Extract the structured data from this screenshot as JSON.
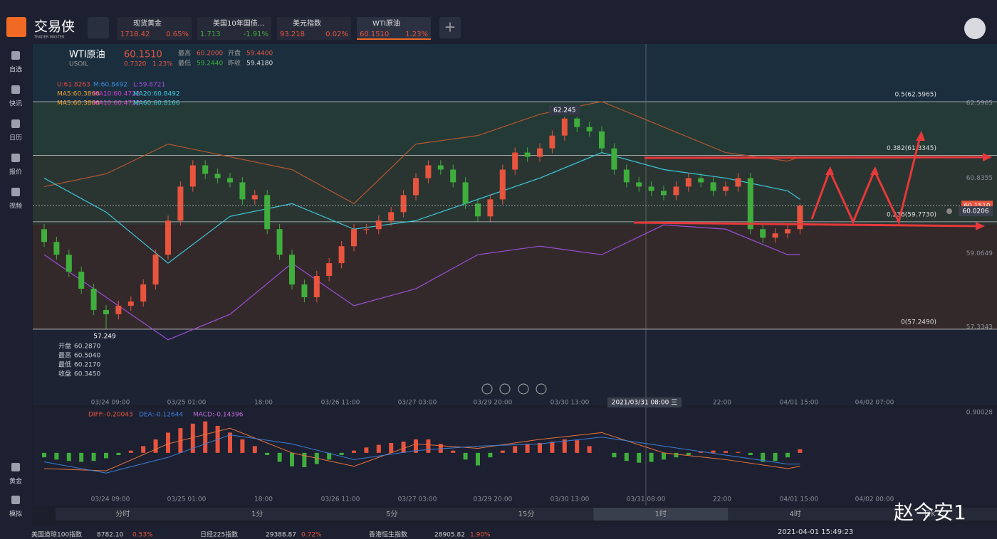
{
  "topbar": {
    "logo": "交易侠",
    "logo_sub": "TRADER MASTER",
    "tabs": [
      {
        "name": "现货黄金",
        "price": "1718.42",
        "change": "0.65%"
      },
      {
        "name": "美国10年国债...",
        "price": "1.713",
        "change": "-1.91%"
      },
      {
        "name": "美元指数",
        "price": "93.218",
        "change": "0.02%"
      },
      {
        "name": "WTI原油",
        "price": "60.1510",
        "change": "1.23%"
      }
    ]
  },
  "sidebar": [
    "自选",
    "快讯",
    "日历",
    "报价",
    "视频",
    "黄金",
    "模拟"
  ],
  "quote": {
    "name": "WTI原油",
    "symbol": "USOIL",
    "price": "60.1510",
    "change": "0.7320",
    "change_pct": "1.23%",
    "high_label": "最高",
    "high": "60.2000",
    "open_label": "开盘",
    "open": "59.4400",
    "low_label": "最低",
    "low": "59.2440",
    "prev_label": "昨收",
    "prev": "59.4180"
  },
  "indicators": {
    "boll": [
      "U:61.8263",
      "M:60.8492",
      "L:59.8721"
    ],
    "ma1": [
      "MA5:60.3860",
      "MA10:60.4722",
      "MA20:60.8492"
    ],
    "ma2": [
      "MA5:60.3860",
      "MA10:60.4722",
      "MA60:60.8166"
    ]
  },
  "chart": {
    "type": "candlestick",
    "ylim": [
      55.71,
      63.95
    ],
    "yticks": [
      62.5965,
      60.8355,
      59.0649,
      57.3343
    ],
    "candles": [
      [
        59.6,
        59.72,
        59.18,
        59.3
      ],
      [
        59.3,
        59.42,
        58.88,
        59.0
      ],
      [
        59.0,
        59.12,
        58.48,
        58.6
      ],
      [
        58.6,
        58.72,
        58.08,
        58.2
      ],
      [
        58.2,
        58.32,
        57.58,
        57.7
      ],
      [
        57.7,
        57.82,
        57.249,
        57.6
      ],
      [
        57.6,
        57.92,
        57.48,
        57.8
      ],
      [
        57.8,
        58.02,
        57.68,
        57.9
      ],
      [
        57.9,
        58.42,
        57.78,
        58.3
      ],
      [
        58.3,
        59.12,
        58.18,
        59.0
      ],
      [
        59.0,
        59.92,
        58.88,
        59.8
      ],
      [
        59.8,
        60.72,
        59.68,
        60.6
      ],
      [
        60.6,
        61.22,
        60.48,
        61.1
      ],
      [
        61.1,
        61.22,
        60.78,
        60.9
      ],
      [
        60.9,
        61.02,
        60.68,
        60.8
      ],
      [
        60.8,
        60.92,
        60.58,
        60.7
      ],
      [
        60.7,
        60.82,
        60.18,
        60.3
      ],
      [
        60.3,
        60.52,
        60.18,
        60.4
      ],
      [
        60.4,
        60.52,
        59.48,
        59.6
      ],
      [
        59.6,
        59.72,
        58.88,
        59.0
      ],
      [
        59.0,
        59.12,
        58.18,
        58.3
      ],
      [
        58.3,
        58.42,
        57.88,
        58.0
      ],
      [
        58.0,
        58.62,
        57.88,
        58.5
      ],
      [
        58.5,
        58.92,
        58.38,
        58.8
      ],
      [
        58.8,
        59.32,
        58.68,
        59.2
      ],
      [
        59.2,
        59.72,
        59.08,
        59.6
      ],
      [
        59.6,
        59.72,
        59.48,
        59.6
      ],
      [
        59.6,
        59.92,
        59.48,
        59.8
      ],
      [
        59.8,
        60.12,
        59.68,
        60.0
      ],
      [
        60.0,
        60.52,
        59.88,
        60.4
      ],
      [
        60.4,
        60.92,
        60.28,
        60.8
      ],
      [
        60.8,
        61.22,
        60.68,
        61.1
      ],
      [
        61.1,
        61.22,
        60.88,
        61.0
      ],
      [
        61.0,
        61.12,
        60.58,
        60.7
      ],
      [
        60.7,
        60.82,
        60.08,
        60.2
      ],
      [
        60.2,
        60.32,
        59.78,
        59.9
      ],
      [
        59.9,
        60.42,
        59.78,
        60.3
      ],
      [
        60.3,
        61.12,
        60.18,
        61.0
      ],
      [
        61.0,
        61.52,
        60.88,
        61.4
      ],
      [
        61.4,
        61.52,
        61.18,
        61.3
      ],
      [
        61.3,
        61.62,
        61.18,
        61.5
      ],
      [
        61.5,
        61.92,
        61.38,
        61.8
      ],
      [
        61.8,
        62.245,
        61.68,
        62.2
      ],
      [
        62.2,
        62.24,
        61.88,
        62.0
      ],
      [
        62.0,
        62.12,
        61.78,
        61.9
      ],
      [
        61.9,
        62.02,
        61.38,
        61.5
      ],
      [
        61.5,
        61.62,
        60.88,
        61.0
      ],
      [
        61.0,
        61.12,
        60.58,
        60.7
      ],
      [
        60.7,
        60.82,
        60.48,
        60.6
      ],
      [
        60.6,
        60.72,
        60.38,
        60.5
      ],
      [
        60.5,
        60.62,
        60.28,
        60.4
      ],
      [
        60.4,
        60.72,
        60.28,
        60.6
      ],
      [
        60.6,
        60.92,
        60.48,
        60.8
      ],
      [
        60.8,
        60.92,
        60.58,
        60.7
      ],
      [
        60.7,
        60.82,
        60.38,
        60.5
      ],
      [
        60.5,
        60.72,
        60.38,
        60.6
      ],
      [
        60.6,
        60.92,
        60.48,
        60.8
      ],
      [
        60.8,
        60.92,
        59.48,
        59.6
      ],
      [
        59.6,
        59.72,
        59.28,
        59.4
      ],
      [
        59.4,
        59.62,
        59.28,
        59.5
      ],
      [
        59.5,
        59.72,
        59.38,
        59.6
      ],
      [
        59.6,
        60.2,
        59.48,
        60.151
      ]
    ],
    "boll_index": [
      0,
      5,
      10,
      15,
      20,
      25,
      30,
      35,
      40,
      45,
      50,
      55,
      60,
      61
    ],
    "boll_upper": [
      60.6,
      60.9,
      61.6,
      61.3,
      61.0,
      60.2,
      61.6,
      61.8,
      62.3,
      62.6,
      62.0,
      61.4,
      61.2,
      61.3
    ],
    "boll_mid": [
      60.8,
      60.0,
      58.8,
      59.9,
      60.2,
      59.6,
      59.8,
      60.3,
      60.8,
      61.4,
      61.0,
      60.8,
      60.5,
      60.3
    ],
    "boll_lower": [
      59.0,
      58.0,
      57.0,
      57.6,
      58.8,
      57.8,
      58.2,
      59.0,
      59.2,
      59.0,
      59.7,
      59.6,
      59.0,
      59.0
    ],
    "fib": [
      {
        "value": 62.5965,
        "label": "0.5(62.5965)"
      },
      {
        "value": 61.3345,
        "label": "0.382(61.3345)"
      },
      {
        "value": 59.773,
        "label": "0.236(59.7730)"
      },
      {
        "value": 57.249,
        "label": "0(57.2490)"
      }
    ],
    "last_price": {
      "value": 60.151,
      "label": "60.1510"
    },
    "alert_price": {
      "value": 60.0206,
      "label": "60.0206"
    },
    "max_label": {
      "value": 62.245,
      "label": "62.245"
    },
    "min_label": {
      "value": 57.249,
      "label": "57.249"
    },
    "xlabels": [
      "03/24 09:00",
      "03/25 01:00",
      "18:00",
      "03/26 11:00",
      "03/27 03:00",
      "03/29 20:00",
      "03/30 13:00",
      "22:00",
      "04/01 15:00",
      "04/02 07:00"
    ],
    "crosshair_label": "2021/03/31 08:00 三",
    "ohlc_box": [
      [
        "开盘",
        "60.2870"
      ],
      [
        "最高",
        "60.5040"
      ],
      [
        "最低",
        "60.2170"
      ],
      [
        "收盘",
        "60.3450"
      ]
    ]
  },
  "macd": {
    "labels": [
      "DIFF:-0.20043",
      "DEA:-0.12644",
      "MACD:-0.14396"
    ],
    "top_label": "0.90028",
    "ylim": [
      -1.0,
      0.9
    ],
    "hist": [
      -0.1,
      -0.15,
      -0.18,
      -0.2,
      -0.18,
      -0.12,
      -0.05,
      0.05,
      0.15,
      0.3,
      0.45,
      0.55,
      0.65,
      0.7,
      0.6,
      0.45,
      0.3,
      0.15,
      -0.05,
      -0.2,
      -0.3,
      -0.32,
      -0.25,
      -0.15,
      -0.05,
      0.05,
      0.12,
      0.18,
      0.22,
      0.25,
      0.3,
      0.3,
      0.2,
      0.05,
      -0.15,
      -0.28,
      -0.1,
      0.05,
      0.15,
      0.2,
      0.22,
      0.25,
      0.3,
      0.28,
      0.15,
      0,
      -0.1,
      -0.18,
      -0.22,
      -0.2,
      -0.15,
      -0.1,
      -0.05,
      0.02,
      0.05,
      0.04,
      0.02,
      -0.05,
      -0.2,
      -0.18,
      -0.1,
      0.08
    ],
    "diff": [
      -0.35,
      -0.4,
      0.2,
      0.55,
      0.0,
      -0.3,
      0.2,
      0.1,
      0.3,
      0.45,
      0.0,
      -0.15,
      -0.35,
      -0.3
    ],
    "dea": [
      -0.2,
      -0.45,
      -0.1,
      0.4,
      0.2,
      -0.15,
      0.05,
      0.15,
      0.2,
      0.35,
      0.15,
      -0.05,
      -0.25,
      -0.25
    ],
    "xlabels": [
      "03/24 09:00",
      "03/25 01:00",
      "18:00",
      "03/26 11:00",
      "03/27 03:00",
      "03/29 20:00",
      "03/30 13:00",
      "03/31 08:00",
      "22:00",
      "04/01 15:00",
      "04/02 00:00"
    ]
  },
  "timeframes": [
    "分时",
    "1分",
    "5分",
    "15分",
    "1时",
    "4时",
    "日K"
  ],
  "active_timeframe": "1时",
  "statusbar": {
    "items": [
      [
        "美国道琼100指数",
        "8782.10",
        "0.53%"
      ],
      [
        "日经225指数",
        "29388.87",
        "0.72%"
      ],
      [
        "香港恒生指数",
        "28905.82",
        "1.90%"
      ]
    ],
    "datetime": "2021-04-01 15:49:23"
  },
  "watermark": "赵今安1"
}
